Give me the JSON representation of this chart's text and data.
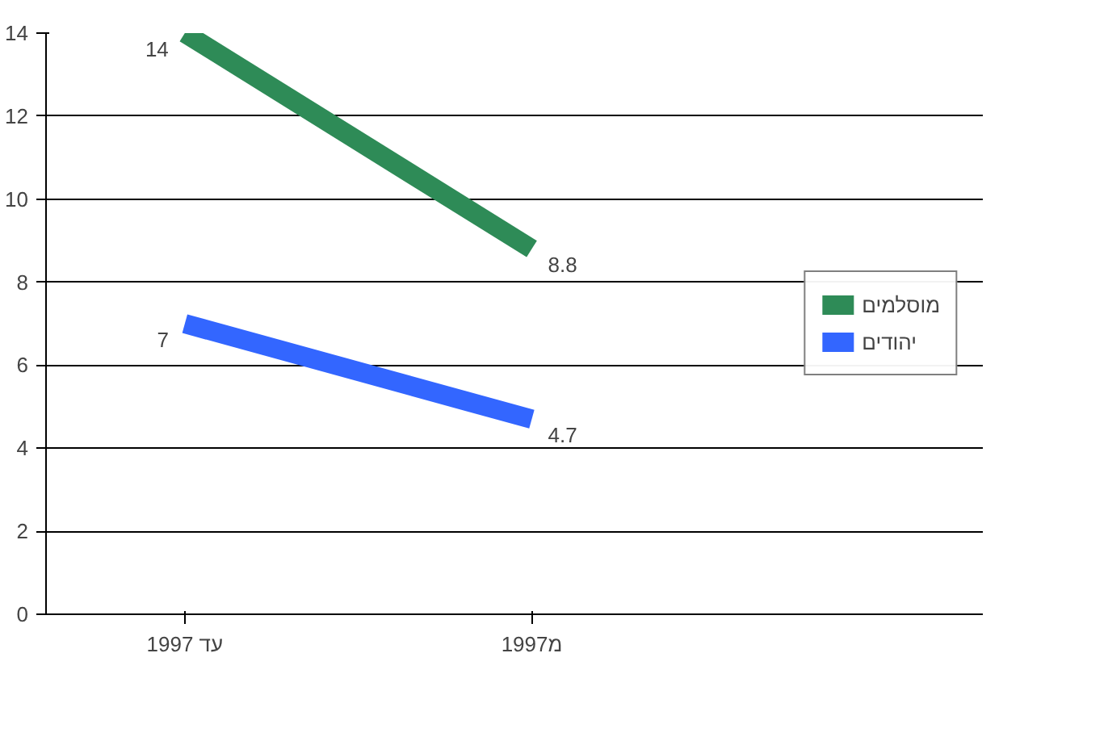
{
  "chart_data": {
    "type": "line",
    "categories": [
      "עד 1997",
      "מ1997"
    ],
    "series": [
      {
        "name": "מוסלמים",
        "color": "#2e8b57",
        "values": [
          14,
          8.8
        ]
      },
      {
        "name": "יהודים",
        "color": "#3366ff",
        "values": [
          7,
          4.7
        ]
      }
    ],
    "ylim": [
      0,
      14
    ],
    "yticks": [
      0,
      2,
      4,
      6,
      8,
      10,
      12,
      14
    ],
    "grid": "y",
    "legend": "right",
    "data_labels": true,
    "marker": "none",
    "line_style": "solid"
  }
}
